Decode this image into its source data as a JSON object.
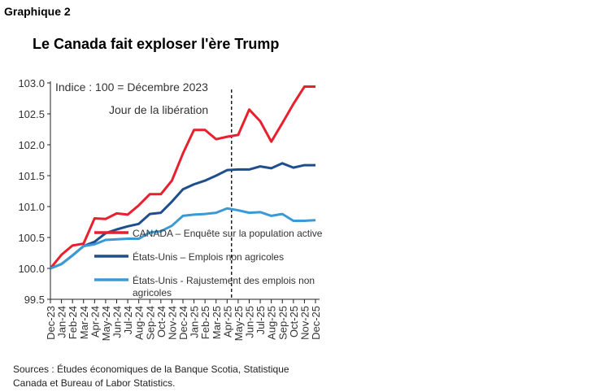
{
  "figure_label": "Graphique 2",
  "source": "Sources : Études économiques de la Banque Scotia, Statistique Canada et Bureau of Labor Statistics.",
  "chart_data": {
    "type": "line",
    "title": "Le Canada fait exploser l'ère Trump",
    "subtitle": "Indice : 100 = Décembre 2023",
    "annotation": {
      "label": "Jour de la libération",
      "at": "Apr-25",
      "style": "dashed vertical line"
    },
    "categories": [
      "Dec-23",
      "Jan-24",
      "Feb-24",
      "Mar-24",
      "Apr-24",
      "May-24",
      "Jun-24",
      "Jul-24",
      "Aug-24",
      "Sep-24",
      "Oct-24",
      "Nov-24",
      "Dec-24",
      "Jan-25",
      "Feb-25",
      "Mar-25",
      "Apr-25",
      "May-25",
      "Jun-25",
      "Jul-25",
      "Aug-25",
      "Sep-25",
      "Oct-25",
      "Nov-25",
      "Dec-25"
    ],
    "ylim": [
      99.5,
      103.0
    ],
    "yticks": [
      "99.5",
      "100.0",
      "100.5",
      "101.0",
      "101.5",
      "102.0",
      "102.5",
      "103.0"
    ],
    "grid": false,
    "legend_placement": "center-bottom inside plot",
    "series": [
      {
        "name": "CANADA – Enquête sur la population active",
        "color": "#e8202e",
        "values": [
          100.0,
          100.22,
          100.37,
          100.4,
          100.81,
          100.8,
          100.89,
          100.87,
          101.02,
          101.2,
          101.2,
          101.42,
          101.86,
          102.24,
          102.24,
          102.09,
          102.13,
          102.16,
          102.57,
          102.38,
          102.05,
          102.35,
          102.66,
          102.94,
          102.94
        ]
      },
      {
        "name": "États-Unis – Emplois non agricoles",
        "color": "#1f4e8c",
        "values": [
          100.0,
          100.07,
          100.21,
          100.36,
          100.43,
          100.57,
          100.63,
          100.68,
          100.72,
          100.88,
          100.9,
          101.08,
          101.28,
          101.36,
          101.42,
          101.5,
          101.59,
          101.6,
          101.6,
          101.65,
          101.62,
          101.7,
          101.63,
          101.67,
          101.67
        ]
      },
      {
        "name": "États-Unis - Rajustement des emplois non agricoles",
        "color": "#3b9ad6",
        "values": [
          100.0,
          100.07,
          100.21,
          100.36,
          100.39,
          100.46,
          100.47,
          100.48,
          100.48,
          100.58,
          100.6,
          100.69,
          100.85,
          100.87,
          100.88,
          100.9,
          100.97,
          100.94,
          100.9,
          100.91,
          100.85,
          100.88,
          100.77,
          100.77,
          100.78
        ]
      }
    ]
  }
}
